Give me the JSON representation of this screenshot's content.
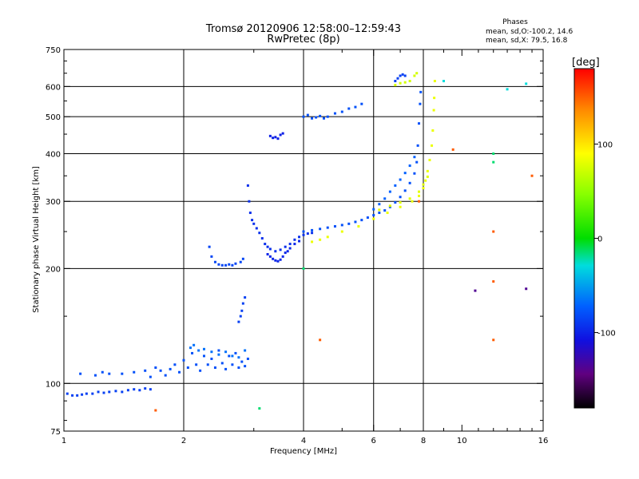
{
  "title_line1": "Tromsø 20120906 12:58:00–12:59:43",
  "title_line2": "RwPretec (8p)",
  "stats": {
    "heading": "Phases",
    "line_o": "mean, sd,O:-100.2, 14.6",
    "line_x": "mean, sd,X: 79.5, 16.8"
  },
  "colorbar": {
    "label": "[deg]",
    "ticks": [
      {
        "value": 100,
        "label": "100"
      },
      {
        "value": 0,
        "label": "0"
      },
      {
        "value": -100,
        "label": "-100"
      }
    ],
    "range": [
      -180,
      180
    ]
  },
  "chart_data": {
    "type": "scatter",
    "xlabel": "Frequency [MHz]",
    "ylabel": "Stationary phase Virtual Height [km]",
    "xscale": "log",
    "yscale": "log",
    "xlim": [
      1,
      16
    ],
    "ylim": [
      75,
      750
    ],
    "xticks": [
      {
        "value": 1,
        "label": "1"
      },
      {
        "value": 2,
        "label": "2"
      },
      {
        "value": 4,
        "label": "4"
      },
      {
        "value": 6,
        "label": "6"
      },
      {
        "value": 8,
        "label": "8"
      },
      {
        "value": 10,
        "label": "10"
      },
      {
        "value": 16,
        "label": "16"
      }
    ],
    "yticks": [
      {
        "value": 75,
        "label": "75"
      },
      {
        "value": 100,
        "label": "100"
      },
      {
        "value": 200,
        "label": "200"
      },
      {
        "value": 300,
        "label": "300"
      },
      {
        "value": 400,
        "label": "400"
      },
      {
        "value": 500,
        "label": "500"
      },
      {
        "value": 600,
        "label": "600"
      },
      {
        "value": 750,
        "label": "750"
      }
    ],
    "grid_x": [
      2,
      4,
      6,
      8
    ],
    "grid_y": [
      100,
      200,
      300,
      400,
      500,
      600
    ],
    "series": [
      {
        "phase": -110,
        "points": [
          [
            1.02,
            94
          ],
          [
            1.05,
            93
          ],
          [
            1.08,
            93
          ],
          [
            1.11,
            93.5
          ],
          [
            1.14,
            94
          ],
          [
            1.18,
            94
          ],
          [
            1.22,
            95
          ],
          [
            1.26,
            94.5
          ],
          [
            1.3,
            95
          ],
          [
            1.35,
            95.5
          ],
          [
            1.4,
            95
          ],
          [
            1.45,
            96
          ],
          [
            1.5,
            96.5
          ],
          [
            1.55,
            96
          ],
          [
            1.6,
            97
          ],
          [
            1.65,
            96.5
          ]
        ]
      },
      {
        "phase": -105,
        "points": [
          [
            1.1,
            106
          ],
          [
            1.2,
            105
          ],
          [
            1.25,
            107
          ],
          [
            1.3,
            106
          ],
          [
            1.4,
            106
          ],
          [
            1.5,
            107
          ],
          [
            1.6,
            108
          ],
          [
            1.65,
            104
          ],
          [
            1.7,
            110
          ],
          [
            1.75,
            108
          ],
          [
            1.8,
            105
          ],
          [
            1.85,
            109
          ],
          [
            1.9,
            112
          ],
          [
            1.95,
            107
          ],
          [
            2.0,
            115
          ],
          [
            2.05,
            110
          ],
          [
            2.1,
            120
          ],
          [
            2.15,
            112
          ],
          [
            2.2,
            108
          ],
          [
            2.25,
            118
          ],
          [
            2.3,
            112
          ],
          [
            2.35,
            116
          ],
          [
            2.4,
            110
          ],
          [
            2.45,
            122
          ],
          [
            2.5,
            113
          ],
          [
            2.55,
            109
          ],
          [
            2.6,
            118
          ],
          [
            2.65,
            112
          ],
          [
            2.7,
            120
          ],
          [
            2.75,
            110
          ],
          [
            2.8,
            114
          ],
          [
            2.85,
            111
          ],
          [
            2.9,
            116
          ]
        ]
      },
      {
        "phase": -95,
        "points": [
          [
            2.08,
            124
          ],
          [
            2.12,
            126
          ],
          [
            2.18,
            122
          ],
          [
            2.25,
            123
          ],
          [
            2.35,
            121
          ],
          [
            2.45,
            119
          ],
          [
            2.55,
            121
          ],
          [
            2.65,
            118
          ],
          [
            2.75,
            117
          ],
          [
            2.85,
            122
          ]
        ]
      },
      {
        "phase": -110,
        "points": [
          [
            2.75,
            145
          ],
          [
            2.78,
            150
          ],
          [
            2.8,
            155
          ],
          [
            2.82,
            162
          ],
          [
            2.85,
            168
          ]
        ]
      },
      {
        "phase": -108,
        "points": [
          [
            2.32,
            228
          ],
          [
            2.35,
            215
          ],
          [
            2.4,
            208
          ],
          [
            2.45,
            205
          ],
          [
            2.5,
            204
          ],
          [
            2.55,
            204
          ],
          [
            2.6,
            205
          ],
          [
            2.65,
            204
          ],
          [
            2.7,
            206
          ],
          [
            2.78,
            208
          ],
          [
            2.82,
            212
          ]
        ]
      },
      {
        "phase": -115,
        "points": [
          [
            2.9,
            330
          ],
          [
            2.92,
            300
          ],
          [
            2.94,
            280
          ],
          [
            2.97,
            268
          ],
          [
            3.0,
            262
          ],
          [
            3.05,
            255
          ],
          [
            3.1,
            248
          ],
          [
            3.15,
            240
          ],
          [
            3.2,
            232
          ],
          [
            3.25,
            228
          ],
          [
            3.3,
            225
          ],
          [
            3.4,
            222
          ],
          [
            3.5,
            224
          ],
          [
            3.6,
            228
          ],
          [
            3.7,
            232
          ],
          [
            3.8,
            238
          ],
          [
            3.9,
            242
          ],
          [
            4.0,
            245
          ],
          [
            4.1,
            247
          ],
          [
            4.2,
            248
          ]
        ]
      },
      {
        "phase": -118,
        "points": [
          [
            3.25,
            218
          ],
          [
            3.3,
            215
          ],
          [
            3.35,
            212
          ],
          [
            3.4,
            210
          ],
          [
            3.45,
            209
          ],
          [
            3.5,
            211
          ],
          [
            3.55,
            215
          ],
          [
            3.6,
            220
          ],
          [
            3.65,
            222
          ],
          [
            3.7,
            226
          ],
          [
            3.8,
            232
          ],
          [
            3.9,
            236
          ]
        ]
      },
      {
        "phase": -105,
        "points": [
          [
            4.0,
            250
          ],
          [
            4.2,
            252
          ],
          [
            4.4,
            254
          ],
          [
            4.6,
            256
          ],
          [
            4.8,
            258
          ],
          [
            5.0,
            260
          ],
          [
            5.2,
            262
          ],
          [
            5.4,
            265
          ],
          [
            5.6,
            268
          ],
          [
            5.8,
            272
          ],
          [
            6.0,
            276
          ],
          [
            6.2,
            280
          ],
          [
            6.4,
            284
          ],
          [
            6.6,
            290
          ],
          [
            6.8,
            298
          ],
          [
            7.0,
            308
          ],
          [
            7.2,
            320
          ],
          [
            7.4,
            335
          ],
          [
            7.6,
            355
          ],
          [
            7.7,
            380
          ],
          [
            7.75,
            420
          ],
          [
            7.8,
            480
          ],
          [
            7.85,
            540
          ],
          [
            7.88,
            580
          ]
        ]
      },
      {
        "phase": -100,
        "points": [
          [
            6.0,
            286
          ],
          [
            6.2,
            295
          ],
          [
            6.4,
            305
          ],
          [
            6.6,
            318
          ],
          [
            6.8,
            330
          ],
          [
            7.0,
            342
          ],
          [
            7.2,
            356
          ],
          [
            7.4,
            372
          ],
          [
            7.6,
            392
          ]
        ]
      },
      {
        "phase": -120,
        "points": [
          [
            3.3,
            445
          ],
          [
            3.35,
            440
          ],
          [
            3.4,
            442
          ],
          [
            3.45,
            438
          ],
          [
            3.5,
            448
          ],
          [
            3.55,
            452
          ]
        ]
      },
      {
        "phase": -105,
        "points": [
          [
            4.0,
            500
          ],
          [
            4.1,
            505
          ],
          [
            4.2,
            495
          ],
          [
            4.3,
            498
          ],
          [
            4.4,
            502
          ],
          [
            4.5,
            495
          ],
          [
            4.6,
            500
          ],
          [
            4.8,
            510
          ],
          [
            5.0,
            515
          ],
          [
            5.2,
            525
          ],
          [
            5.4,
            530
          ],
          [
            5.6,
            540
          ]
        ]
      },
      {
        "phase": -110,
        "points": [
          [
            6.8,
            620
          ],
          [
            6.9,
            630
          ],
          [
            7.0,
            640
          ],
          [
            7.1,
            645
          ],
          [
            7.2,
            640
          ]
        ]
      },
      {
        "phase": 82,
        "points": [
          [
            4.2,
            235
          ],
          [
            4.4,
            238
          ],
          [
            4.6,
            242
          ],
          [
            5.0,
            250
          ],
          [
            5.5,
            258
          ],
          [
            6.0,
            270
          ],
          [
            6.5,
            280
          ],
          [
            7.0,
            290
          ],
          [
            7.5,
            300
          ],
          [
            7.8,
            310
          ],
          [
            8.0,
            325
          ],
          [
            8.1,
            340
          ],
          [
            8.2,
            360
          ],
          [
            8.3,
            385
          ],
          [
            8.4,
            420
          ],
          [
            8.45,
            460
          ],
          [
            8.5,
            520
          ],
          [
            8.52,
            560
          ],
          [
            8.55,
            620
          ]
        ]
      },
      {
        "phase": 78,
        "points": [
          [
            6.2,
            285
          ],
          [
            6.6,
            292
          ],
          [
            7.0,
            298
          ],
          [
            7.4,
            305
          ],
          [
            7.8,
            318
          ],
          [
            8.0,
            332
          ],
          [
            8.2,
            348
          ]
        ]
      },
      {
        "phase": 72,
        "points": [
          [
            6.8,
            605
          ],
          [
            7.0,
            612
          ],
          [
            7.2,
            615
          ],
          [
            7.4,
            620
          ],
          [
            7.6,
            640
          ],
          [
            7.7,
            650
          ]
        ]
      },
      {
        "phase": 150,
        "points": [
          [
            1.7,
            85
          ],
          [
            9.5,
            410
          ],
          [
            12.0,
            250
          ],
          [
            15.0,
            350
          ],
          [
            12.0,
            130
          ],
          [
            12.0,
            185
          ],
          [
            4.4,
            130
          ],
          [
            7.8,
            300
          ]
        ]
      },
      {
        "phase": -30,
        "points": [
          [
            3.1,
            86
          ],
          [
            12.0,
            400
          ],
          [
            12.0,
            380
          ],
          [
            4.0,
            200
          ]
        ]
      },
      {
        "phase": -145,
        "points": [
          [
            10.8,
            175
          ],
          [
            14.5,
            177
          ]
        ]
      },
      {
        "phase": -60,
        "points": [
          [
            13.0,
            590
          ],
          [
            14.5,
            610
          ],
          [
            9.0,
            620
          ]
        ]
      }
    ]
  }
}
